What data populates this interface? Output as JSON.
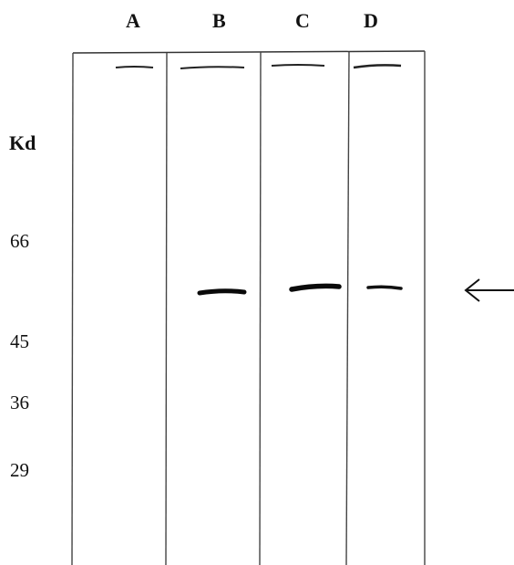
{
  "lanes": [
    {
      "label": "A",
      "band": false
    },
    {
      "label": "B",
      "band": true
    },
    {
      "label": "C",
      "band": true
    },
    {
      "label": "D",
      "band": true
    }
  ],
  "kd_label": "Kd",
  "markers": [
    "66",
    "45",
    "36",
    "29"
  ],
  "arrow_glyph": "←"
}
